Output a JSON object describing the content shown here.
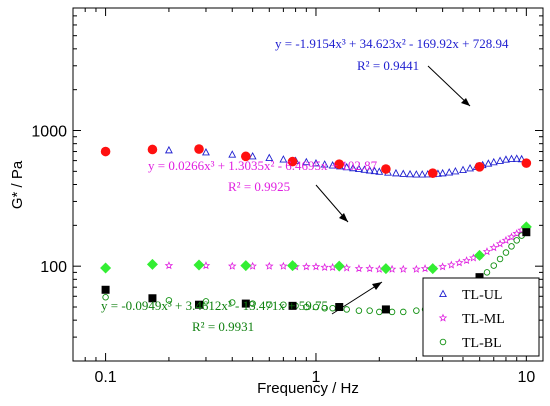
{
  "chart_data": {
    "type": "scatter",
    "xlabel": "Frequency / Hz",
    "ylabel": "G* / Pa",
    "x_scale": "log",
    "y_scale": "log",
    "xlim": [
      0.07,
      12
    ],
    "ylim": [
      20,
      8000
    ],
    "x_ticks": [
      {
        "value": 0.1,
        "label": "0.1"
      },
      {
        "value": 1,
        "label": "1"
      },
      {
        "value": 10,
        "label": "10"
      }
    ],
    "y_ticks": [
      {
        "value": 100,
        "label": "100"
      },
      {
        "value": 1000,
        "label": "1000"
      }
    ],
    "grid": false,
    "legend_position": "bottom-right",
    "series": [
      {
        "name": "TL-UL",
        "marker": "triangle-open",
        "color": "#2020d0",
        "x": [
          0.2,
          0.3,
          0.4,
          0.5,
          0.6,
          0.7,
          0.8,
          0.9,
          1.0,
          1.1,
          1.2,
          1.3,
          1.4,
          1.5,
          1.6,
          1.7,
          1.8,
          1.9,
          2.0,
          2.2,
          2.4,
          2.6,
          2.8,
          3.0,
          3.2,
          3.4,
          3.6,
          3.8,
          4.0,
          4.3,
          4.6,
          5.0,
          5.4,
          5.8,
          6.2,
          6.6,
          7.0,
          7.5,
          8.0,
          8.5,
          9.0,
          9.5
        ],
        "y": [
          715,
          690,
          665,
          645,
          628,
          612,
          598,
          585,
          573,
          562,
          553,
          544,
          536,
          528,
          521,
          514,
          508,
          502,
          497,
          490,
          484,
          479,
          476,
          474,
          474,
          475,
          477,
          480,
          484,
          491,
          500,
          512,
          526,
          540,
          556,
          570,
          584,
          598,
          610,
          617,
          620,
          615
        ]
      },
      {
        "name": "TL-ML",
        "marker": "star-open",
        "color": "#e020e0",
        "x": [
          0.2,
          0.3,
          0.4,
          0.5,
          0.6,
          0.7,
          0.8,
          0.9,
          1.0,
          1.1,
          1.2,
          1.4,
          1.6,
          1.8,
          2.0,
          2.3,
          2.6,
          3.0,
          3.3,
          3.6,
          4.0,
          4.4,
          4.8,
          5.2,
          5.6,
          6.0,
          6.5,
          7.0,
          7.5,
          8.0,
          8.5,
          9.0,
          9.5
        ],
        "y": [
          101,
          101,
          100,
          100,
          100,
          100,
          99,
          99,
          99,
          98,
          98,
          97,
          96,
          96,
          95,
          95,
          95,
          95,
          96,
          97,
          99,
          102,
          106,
          110,
          115,
          120,
          128,
          137,
          146,
          155,
          164,
          174,
          184
        ]
      },
      {
        "name": "TL-BL",
        "marker": "circle-open",
        "color": "#109010",
        "x": [
          0.1,
          0.2,
          0.3,
          0.4,
          0.5,
          0.6,
          0.7,
          0.8,
          0.9,
          1.0,
          1.1,
          1.2,
          1.4,
          1.6,
          1.8,
          2.0,
          2.3,
          2.6,
          3.0,
          3.3,
          3.6,
          4.0,
          4.4,
          4.8,
          5.2,
          5.6,
          6.0,
          6.5,
          7.0,
          7.5,
          8.0,
          8.5,
          9.0,
          9.5,
          10.0
        ],
        "y": [
          59,
          56,
          55,
          54,
          53,
          52,
          52,
          51,
          50,
          50,
          49,
          49,
          48,
          47,
          47,
          46,
          46,
          46,
          47,
          48,
          50,
          53,
          57,
          62,
          67,
          73,
          80,
          90,
          101,
          113,
          126,
          140,
          155,
          168,
          183
        ]
      },
      {
        "name": "",
        "marker": "circle-filled",
        "color": "#ff1010",
        "x": [
          0.1,
          0.167,
          0.278,
          0.464,
          0.774,
          1.29,
          2.15,
          3.59,
          5.99,
          10.0
        ],
        "y": [
          700,
          725,
          730,
          645,
          590,
          565,
          520,
          485,
          540,
          575
        ]
      },
      {
        "name": "",
        "marker": "diamond-filled",
        "color": "#33ee33",
        "x": [
          0.1,
          0.167,
          0.278,
          0.464,
          0.774,
          1.29,
          2.15,
          3.59,
          5.99,
          10.0
        ],
        "y": [
          97,
          103,
          102,
          101,
          101,
          100,
          96,
          96,
          120,
          195
        ]
      },
      {
        "name": "",
        "marker": "square-filled",
        "color": "#000000",
        "x": [
          0.1,
          0.167,
          0.278,
          0.464,
          0.774,
          1.29,
          2.15,
          3.59,
          5.99,
          10.0
        ],
        "y": [
          67,
          58,
          52,
          53,
          51,
          50,
          48,
          53,
          83,
          178
        ]
      }
    ],
    "annotations": [
      {
        "name": "tl-ul",
        "color": "#2020d0",
        "line1": "y = -1.9154x³ + 34.623x² - 169.92x + 728.94",
        "line2": "R² = 0.9441"
      },
      {
        "name": "tl-ml",
        "color": "#e020e0",
        "line1": "y = 0.0266x³ + 1.3035x² - 6.4695x + 102.87",
        "line2": "R² = 0.9925"
      },
      {
        "name": "tl-bl",
        "color": "#108010",
        "line1": "y = -0.0949x³ + 3.4612x² - 13.471x + 59.75",
        "line2": "R² = 0.9931"
      }
    ]
  }
}
